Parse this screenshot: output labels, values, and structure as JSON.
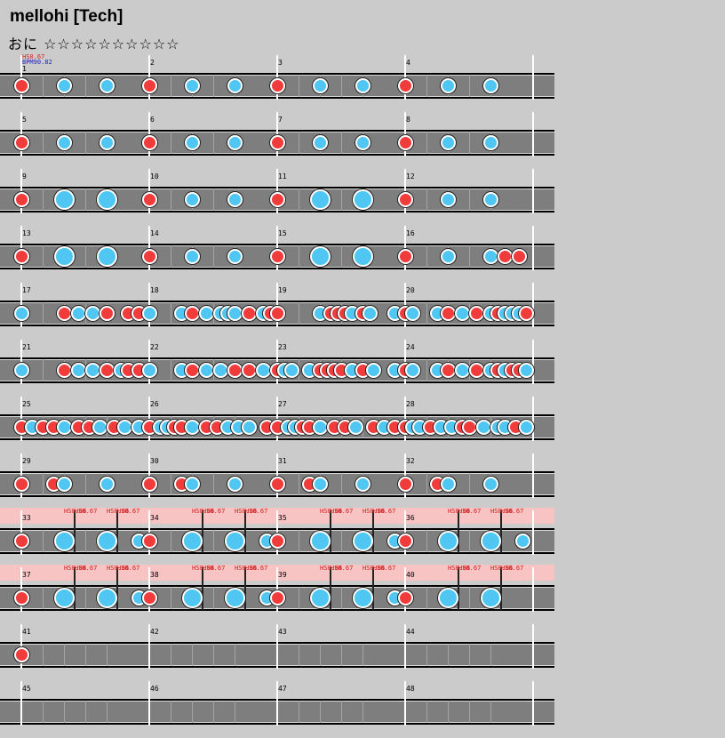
{
  "title": "mellohi [Tech]",
  "course": "おに ☆☆☆☆☆☆☆☆☆☆",
  "initial": {
    "hs": "HS0.67",
    "bpm": "BPM90.82"
  },
  "colors": {
    "background": "#cbcbcb",
    "lane": "#7e7e7e",
    "don": "#f23b3b",
    "ka": "#4fc7f2",
    "hs_band": "#f8c3c3"
  },
  "rows": [
    {
      "bars": [
        1,
        2,
        3,
        4
      ],
      "notes": [
        [
          24,
          "d"
        ],
        [
          72,
          "k"
        ],
        [
          120,
          "k"
        ],
        [
          168,
          "d"
        ],
        [
          216,
          "k"
        ],
        [
          264,
          "k"
        ],
        [
          312,
          "d"
        ],
        [
          360,
          "k"
        ],
        [
          408,
          "k"
        ],
        [
          456,
          "d"
        ],
        [
          504,
          "k"
        ],
        [
          552,
          "k"
        ]
      ]
    },
    {
      "bars": [
        5,
        6,
        7,
        8
      ],
      "notes": [
        [
          24,
          "d"
        ],
        [
          72,
          "k"
        ],
        [
          120,
          "k"
        ],
        [
          168,
          "d"
        ],
        [
          216,
          "k"
        ],
        [
          264,
          "k"
        ],
        [
          312,
          "d"
        ],
        [
          360,
          "k"
        ],
        [
          408,
          "k"
        ],
        [
          456,
          "d"
        ],
        [
          504,
          "k"
        ],
        [
          552,
          "k"
        ]
      ]
    },
    {
      "bars": [
        9,
        10,
        11,
        12
      ],
      "notes": [
        [
          24,
          "d"
        ],
        [
          72,
          "K"
        ],
        [
          120,
          "K"
        ],
        [
          168,
          "d"
        ],
        [
          216,
          "k"
        ],
        [
          264,
          "k"
        ],
        [
          312,
          "d"
        ],
        [
          360,
          "K"
        ],
        [
          408,
          "K"
        ],
        [
          456,
          "d"
        ],
        [
          504,
          "k"
        ],
        [
          552,
          "k"
        ]
      ]
    },
    {
      "bars": [
        13,
        14,
        15,
        16
      ],
      "notes": [
        [
          24,
          "d"
        ],
        [
          72,
          "K"
        ],
        [
          120,
          "K"
        ],
        [
          168,
          "d"
        ],
        [
          216,
          "k"
        ],
        [
          264,
          "k"
        ],
        [
          312,
          "d"
        ],
        [
          360,
          "K"
        ],
        [
          408,
          "K"
        ],
        [
          456,
          "d"
        ],
        [
          504,
          "k"
        ],
        [
          552,
          "k"
        ],
        [
          568,
          "d"
        ],
        [
          584,
          "d"
        ]
      ]
    },
    {
      "bars": [
        17,
        18,
        19,
        20
      ],
      "notes": [
        [
          24,
          "k"
        ],
        [
          72,
          "d"
        ],
        [
          88,
          "k"
        ],
        [
          104,
          "k"
        ],
        [
          120,
          "d"
        ],
        [
          144,
          "d"
        ],
        [
          156,
          "d"
        ],
        [
          168,
          "k"
        ],
        [
          204,
          "k"
        ],
        [
          216,
          "d"
        ],
        [
          232,
          "k"
        ],
        [
          248,
          "k"
        ],
        [
          256,
          "k"
        ],
        [
          264,
          "k"
        ],
        [
          280,
          "d"
        ],
        [
          296,
          "k"
        ],
        [
          304,
          "d"
        ],
        [
          312,
          "d"
        ],
        [
          360,
          "k"
        ],
        [
          372,
          "d"
        ],
        [
          380,
          "d"
        ],
        [
          388,
          "d"
        ],
        [
          396,
          "k"
        ],
        [
          408,
          "d"
        ],
        [
          416,
          "k"
        ],
        [
          444,
          "k"
        ],
        [
          456,
          "d"
        ],
        [
          464,
          "k"
        ],
        [
          492,
          "k"
        ],
        [
          504,
          "d"
        ],
        [
          520,
          "k"
        ],
        [
          536,
          "d"
        ],
        [
          552,
          "k"
        ],
        [
          560,
          "d"
        ],
        [
          568,
          "k"
        ],
        [
          576,
          "k"
        ],
        [
          584,
          "k"
        ],
        [
          592,
          "d"
        ]
      ]
    },
    {
      "bars": [
        21,
        22,
        23,
        24
      ],
      "notes": [
        [
          24,
          "k"
        ],
        [
          72,
          "d"
        ],
        [
          88,
          "k"
        ],
        [
          104,
          "k"
        ],
        [
          120,
          "d"
        ],
        [
          136,
          "k"
        ],
        [
          144,
          "d"
        ],
        [
          156,
          "d"
        ],
        [
          168,
          "k"
        ],
        [
          204,
          "k"
        ],
        [
          216,
          "d"
        ],
        [
          232,
          "k"
        ],
        [
          248,
          "k"
        ],
        [
          264,
          "d"
        ],
        [
          280,
          "d"
        ],
        [
          296,
          "k"
        ],
        [
          312,
          "d"
        ],
        [
          320,
          "k"
        ],
        [
          328,
          "k"
        ],
        [
          348,
          "k"
        ],
        [
          360,
          "d"
        ],
        [
          368,
          "d"
        ],
        [
          376,
          "d"
        ],
        [
          384,
          "d"
        ],
        [
          396,
          "k"
        ],
        [
          408,
          "d"
        ],
        [
          420,
          "k"
        ],
        [
          444,
          "k"
        ],
        [
          456,
          "d"
        ],
        [
          464,
          "k"
        ],
        [
          492,
          "k"
        ],
        [
          504,
          "d"
        ],
        [
          520,
          "k"
        ],
        [
          536,
          "d"
        ],
        [
          552,
          "k"
        ],
        [
          560,
          "d"
        ],
        [
          568,
          "k"
        ],
        [
          576,
          "d"
        ],
        [
          584,
          "d"
        ],
        [
          592,
          "k"
        ]
      ]
    },
    {
      "bars": [
        25,
        26,
        27,
        28
      ],
      "notes": [
        [
          24,
          "d"
        ],
        [
          36,
          "k"
        ],
        [
          48,
          "d"
        ],
        [
          60,
          "d"
        ],
        [
          72,
          "k"
        ],
        [
          88,
          "d"
        ],
        [
          100,
          "d"
        ],
        [
          112,
          "k"
        ],
        [
          128,
          "d"
        ],
        [
          140,
          "k"
        ],
        [
          156,
          "k"
        ],
        [
          168,
          "d"
        ],
        [
          180,
          "k"
        ],
        [
          188,
          "k"
        ],
        [
          196,
          "d"
        ],
        [
          204,
          "d"
        ],
        [
          216,
          "k"
        ],
        [
          232,
          "d"
        ],
        [
          244,
          "d"
        ],
        [
          256,
          "k"
        ],
        [
          268,
          "k"
        ],
        [
          280,
          "k"
        ],
        [
          300,
          "d"
        ],
        [
          312,
          "d"
        ],
        [
          324,
          "k"
        ],
        [
          332,
          "k"
        ],
        [
          340,
          "d"
        ],
        [
          348,
          "d"
        ],
        [
          360,
          "k"
        ],
        [
          376,
          "d"
        ],
        [
          388,
          "d"
        ],
        [
          400,
          "k"
        ],
        [
          420,
          "d"
        ],
        [
          432,
          "k"
        ],
        [
          444,
          "d"
        ],
        [
          456,
          "d"
        ],
        [
          464,
          "k"
        ],
        [
          472,
          "k"
        ],
        [
          484,
          "d"
        ],
        [
          496,
          "k"
        ],
        [
          508,
          "k"
        ],
        [
          520,
          "d"
        ],
        [
          528,
          "d"
        ],
        [
          544,
          "k"
        ],
        [
          560,
          "k"
        ],
        [
          568,
          "k"
        ],
        [
          580,
          "d"
        ],
        [
          592,
          "k"
        ]
      ]
    },
    {
      "bars": [
        29,
        30,
        31,
        32
      ],
      "notes": [
        [
          24,
          "d"
        ],
        [
          60,
          "d"
        ],
        [
          72,
          "k"
        ],
        [
          120,
          "k"
        ],
        [
          168,
          "d"
        ],
        [
          204,
          "d"
        ],
        [
          216,
          "k"
        ],
        [
          264,
          "k"
        ],
        [
          312,
          "d"
        ],
        [
          348,
          "d"
        ],
        [
          360,
          "k"
        ],
        [
          408,
          "k"
        ],
        [
          456,
          "d"
        ],
        [
          492,
          "d"
        ],
        [
          504,
          "k"
        ],
        [
          552,
          "k"
        ]
      ]
    },
    {
      "bars": [
        33,
        34,
        35,
        36
      ],
      "gogo": true,
      "gogolines": [
        84,
        132,
        228,
        276,
        372,
        420,
        516,
        564
      ],
      "hslabels": [
        [
          72,
          "HS0.86"
        ],
        [
          84,
          "HS0.67"
        ],
        [
          120,
          "HS0.86"
        ],
        [
          132,
          "HS0.67"
        ],
        [
          216,
          "HS0.86"
        ],
        [
          228,
          "HS0.67"
        ],
        [
          264,
          "HS0.86"
        ],
        [
          276,
          "HS0.67"
        ],
        [
          360,
          "HS0.86"
        ],
        [
          372,
          "HS0.67"
        ],
        [
          408,
          "HS0.86"
        ],
        [
          420,
          "HS0.67"
        ],
        [
          504,
          "HS0.86"
        ],
        [
          516,
          "HS0.67"
        ],
        [
          552,
          "HS0.86"
        ],
        [
          564,
          "HS0.67"
        ]
      ],
      "notes": [
        [
          24,
          "d"
        ],
        [
          72,
          "K"
        ],
        [
          120,
          "K"
        ],
        [
          156,
          "k"
        ],
        [
          168,
          "d"
        ],
        [
          216,
          "K"
        ],
        [
          264,
          "K"
        ],
        [
          300,
          "k"
        ],
        [
          312,
          "d"
        ],
        [
          360,
          "K"
        ],
        [
          408,
          "K"
        ],
        [
          444,
          "k"
        ],
        [
          456,
          "d"
        ],
        [
          504,
          "K"
        ],
        [
          552,
          "K"
        ],
        [
          588,
          "k"
        ]
      ]
    },
    {
      "bars": [
        37,
        38,
        39,
        40
      ],
      "gogo": true,
      "gogolines": [
        84,
        132,
        228,
        276,
        372,
        420,
        516,
        564
      ],
      "hslabels": [
        [
          72,
          "HS0.86"
        ],
        [
          84,
          "HS0.67"
        ],
        [
          120,
          "HS0.86"
        ],
        [
          132,
          "HS0.67"
        ],
        [
          216,
          "HS0.86"
        ],
        [
          228,
          "HS0.67"
        ],
        [
          264,
          "HS0.86"
        ],
        [
          276,
          "HS0.67"
        ],
        [
          360,
          "HS0.86"
        ],
        [
          372,
          "HS0.67"
        ],
        [
          408,
          "HS0.86"
        ],
        [
          420,
          "HS0.67"
        ],
        [
          504,
          "HS0.86"
        ],
        [
          516,
          "HS0.67"
        ],
        [
          552,
          "HS0.86"
        ],
        [
          564,
          "HS0.67"
        ]
      ],
      "notes": [
        [
          24,
          "d"
        ],
        [
          72,
          "K"
        ],
        [
          120,
          "K"
        ],
        [
          156,
          "k"
        ],
        [
          168,
          "d"
        ],
        [
          216,
          "K"
        ],
        [
          264,
          "K"
        ],
        [
          300,
          "k"
        ],
        [
          312,
          "d"
        ],
        [
          360,
          "K"
        ],
        [
          408,
          "K"
        ],
        [
          444,
          "k"
        ],
        [
          456,
          "d"
        ],
        [
          504,
          "K"
        ],
        [
          552,
          "K"
        ]
      ]
    },
    {
      "bars": [
        41,
        42,
        43,
        44
      ],
      "notes": [
        [
          24,
          "d"
        ]
      ]
    },
    {
      "bars": [
        45,
        46,
        47,
        48
      ],
      "notes": []
    }
  ]
}
